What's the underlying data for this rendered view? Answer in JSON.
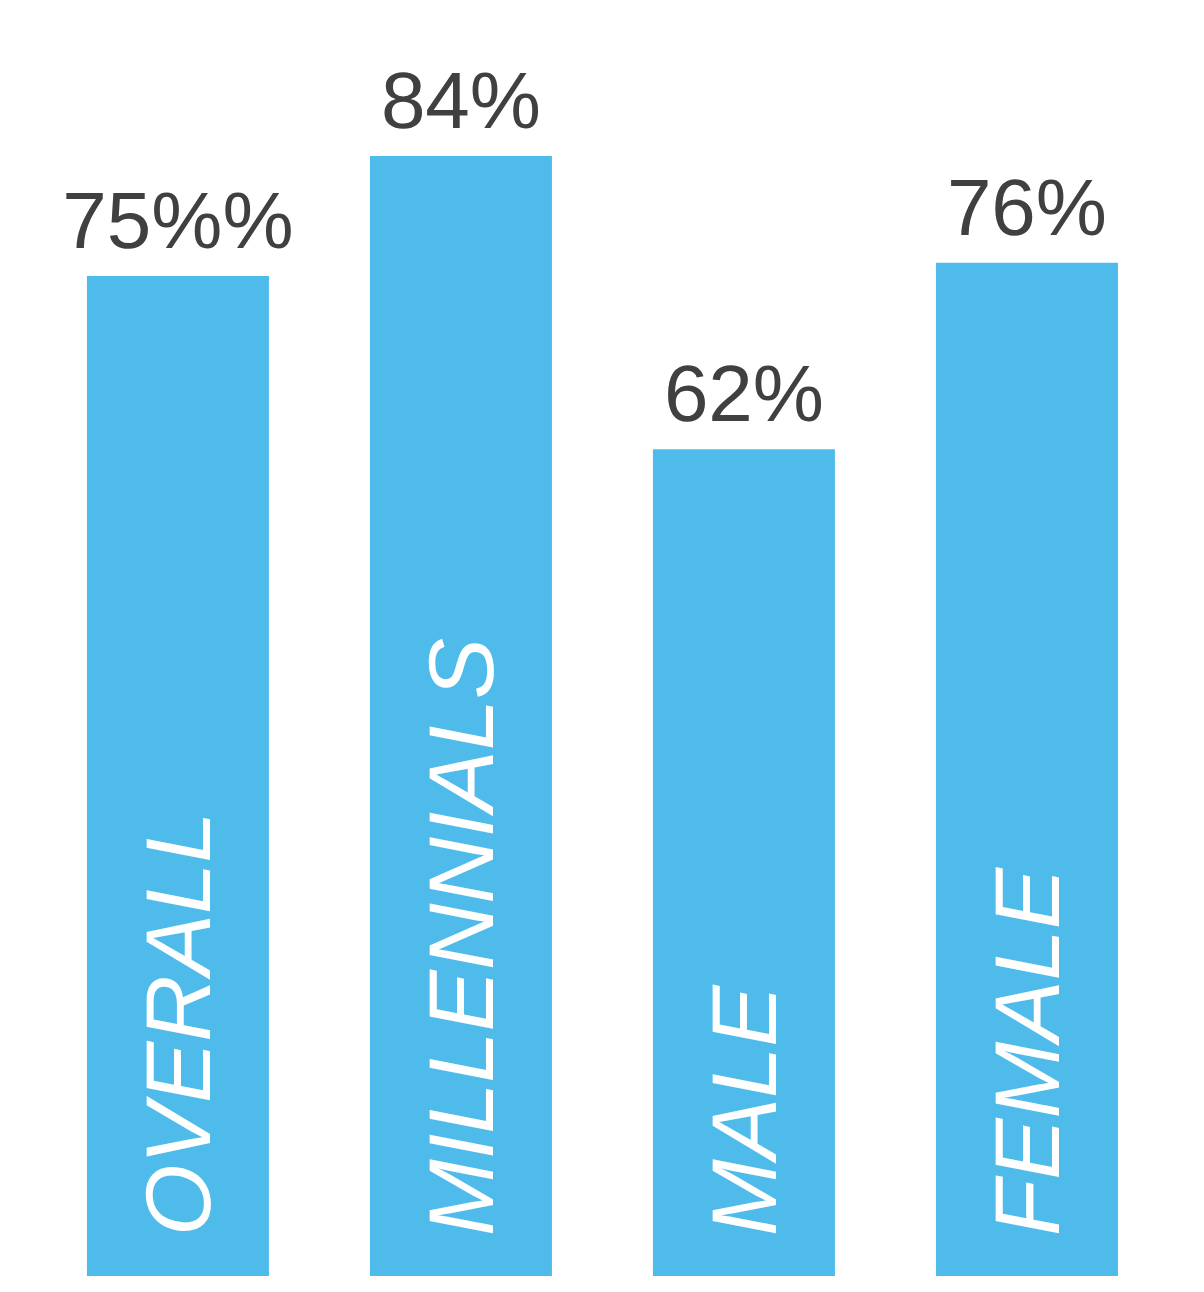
{
  "chart_data": {
    "type": "bar",
    "categories": [
      "OVERALL",
      "MILLENNIALS",
      "MALE",
      "FEMALE"
    ],
    "values": [
      75,
      84,
      62,
      76
    ],
    "value_labels": [
      "75%%",
      "84%",
      "62%",
      "76%"
    ],
    "color": "#4fbbeb",
    "grid": false,
    "legend": false
  }
}
